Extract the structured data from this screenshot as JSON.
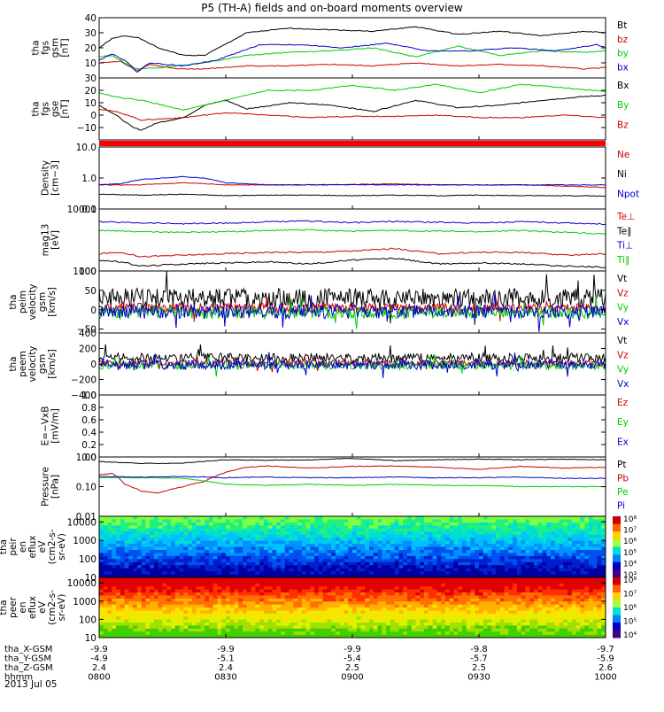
{
  "title": "P5 (TH-A) fields and on-board moments overview",
  "date": "2013 Jul 05",
  "colors": {
    "black": "#000000",
    "red": "#cc0000",
    "green": "#00cc00",
    "blue": "#0000cc",
    "bar": "#ff0000"
  },
  "chart_data": [
    {
      "type": "line",
      "ylabel": [
        "tha",
        "fgs",
        "gsm",
        "[nT]"
      ],
      "ylim": [
        0,
        40
      ],
      "log": false,
      "yticks": [
        {
          "v": 40,
          "t": "40"
        },
        {
          "v": 30,
          "t": "30"
        },
        {
          "v": 20,
          "t": "20"
        },
        {
          "v": 10,
          "t": "10"
        }
      ],
      "series": [
        {
          "name": "Bt",
          "color": "black",
          "x": [
            0,
            3,
            6,
            9,
            14,
            20,
            25,
            35,
            45,
            55,
            65,
            75,
            85,
            95,
            105,
            115,
            120
          ],
          "values": [
            20,
            26,
            28,
            27,
            20,
            15,
            15,
            30,
            33,
            32,
            31,
            34,
            29,
            31,
            28,
            31,
            30
          ]
        },
        {
          "name": "bz",
          "color": "red",
          "x": [
            0,
            5,
            9,
            12,
            18,
            25,
            35,
            45,
            55,
            65,
            75,
            85,
            95,
            105,
            115,
            120
          ],
          "values": [
            10,
            11,
            5,
            9,
            6,
            6,
            8,
            8,
            9,
            8,
            10,
            8,
            9,
            8,
            6,
            7
          ]
        },
        {
          "name": "by",
          "color": "green",
          "x": [
            0,
            3,
            6,
            9,
            15,
            25,
            35,
            45,
            55,
            65,
            75,
            85,
            95,
            105,
            115,
            120
          ],
          "values": [
            14,
            15,
            10,
            6,
            7,
            10,
            15,
            17,
            18,
            20,
            14,
            21,
            15,
            18,
            17,
            18
          ]
        },
        {
          "name": "bx",
          "color": "blue",
          "x": [
            0,
            3,
            6,
            9,
            12,
            20,
            28,
            38,
            48,
            58,
            68,
            78,
            88,
            98,
            108,
            118,
            120
          ],
          "values": [
            12,
            16,
            12,
            4,
            10,
            8,
            12,
            22,
            22,
            20,
            23,
            18,
            18,
            20,
            18,
            22,
            20
          ]
        }
      ]
    },
    {
      "type": "line",
      "ylabel": [
        "tha",
        "fgs",
        "gse",
        "[nT]"
      ],
      "ylim": [
        -20,
        30
      ],
      "log": false,
      "yticks": [
        {
          "v": 30,
          "t": "30"
        },
        {
          "v": 20,
          "t": "20"
        },
        {
          "v": 10,
          "t": "10"
        },
        {
          "v": 0,
          "t": "0"
        },
        {
          "v": -10,
          "t": "−10"
        }
      ],
      "series": [
        {
          "name": "Bx",
          "color": "black",
          "x": [
            0,
            4,
            8,
            10,
            14,
            20,
            25,
            30,
            35,
            45,
            55,
            65,
            75,
            85,
            95,
            105,
            115,
            120
          ],
          "values": [
            8,
            0,
            -10,
            -12,
            -6,
            -2,
            8,
            12,
            5,
            10,
            8,
            3,
            12,
            6,
            8,
            12,
            15,
            16
          ]
        },
        {
          "name": "By",
          "color": "green",
          "x": [
            0,
            5,
            10,
            15,
            20,
            30,
            40,
            50,
            60,
            70,
            80,
            90,
            100,
            110,
            120
          ],
          "values": [
            18,
            14,
            12,
            8,
            4,
            12,
            20,
            20,
            24,
            20,
            25,
            18,
            25,
            22,
            19
          ]
        },
        {
          "name": "Bz",
          "color": "red",
          "x": [
            0,
            5,
            10,
            20,
            30,
            40,
            50,
            60,
            70,
            80,
            90,
            100,
            110,
            120
          ],
          "values": [
            5,
            2,
            -4,
            -2,
            2,
            0,
            -2,
            -1,
            -1,
            0,
            -2,
            -2,
            0,
            -2
          ]
        }
      ]
    },
    {
      "type": "bar",
      "ylabel": [],
      "note": "solid red status bar",
      "color": "bar"
    },
    {
      "type": "line",
      "ylabel": [
        "Density",
        "[cm−3]"
      ],
      "ylim": [
        0.1,
        10
      ],
      "log": true,
      "yticks": [
        {
          "v": 10,
          "t": "10.0"
        },
        {
          "v": 1,
          "t": "1.0"
        },
        {
          "v": 0.1,
          "t": "0.1"
        }
      ],
      "series": [
        {
          "name": "Ne",
          "color": "red",
          "x": [
            0,
            10,
            20,
            30,
            40,
            50,
            60,
            70,
            80,
            90,
            100,
            110,
            120
          ],
          "values": [
            0.6,
            0.6,
            0.7,
            0.6,
            0.6,
            0.6,
            0.62,
            0.65,
            0.6,
            0.6,
            0.6,
            0.55,
            0.5
          ]
        },
        {
          "name": "Ni",
          "color": "black",
          "x": [
            0,
            10,
            20,
            30,
            40,
            50,
            60,
            70,
            80,
            90,
            100,
            110,
            120
          ],
          "values": [
            0.3,
            0.28,
            0.3,
            0.27,
            0.28,
            0.28,
            0.27,
            0.28,
            0.27,
            0.28,
            0.27,
            0.27,
            0.26
          ]
        },
        {
          "name": "Npot",
          "color": "blue",
          "x": [
            0,
            5,
            10,
            15,
            20,
            25,
            30,
            40,
            50,
            60,
            70,
            80,
            90,
            100,
            110,
            120
          ],
          "values": [
            0.6,
            0.65,
            0.9,
            1.0,
            1.1,
            1.0,
            0.7,
            0.6,
            0.6,
            0.6,
            0.6,
            0.6,
            0.6,
            0.6,
            0.6,
            0.6
          ]
        }
      ]
    },
    {
      "type": "line",
      "ylabel": [
        "mag13",
        "[eV]"
      ],
      "ylim": [
        1000,
        10000
      ],
      "log": true,
      "yticks": [
        {
          "v": 10000,
          "t": "10000"
        },
        {
          "v": 1000,
          "t": "1000"
        }
      ],
      "series": [
        {
          "name": "Te⊥",
          "color": "red",
          "x": [
            0,
            5,
            10,
            20,
            30,
            40,
            50,
            60,
            70,
            80,
            90,
            100,
            110,
            120
          ],
          "values": [
            1900,
            2000,
            1700,
            1800,
            1900,
            2000,
            2000,
            2100,
            2300,
            1900,
            2000,
            2000,
            1800,
            1900
          ]
        },
        {
          "name": "Te∥",
          "color": "black",
          "x": [
            0,
            5,
            10,
            20,
            30,
            40,
            50,
            60,
            70,
            80,
            90,
            100,
            110,
            120
          ],
          "values": [
            1500,
            1400,
            1200,
            1300,
            1350,
            1400,
            1300,
            1500,
            1600,
            1300,
            1350,
            1300,
            1200,
            1150
          ]
        },
        {
          "name": "Ti⊥",
          "color": "blue",
          "x": [
            0,
            10,
            20,
            30,
            40,
            50,
            60,
            70,
            80,
            90,
            100,
            110,
            120
          ],
          "values": [
            6200,
            6000,
            5800,
            5900,
            6200,
            6400,
            6000,
            6300,
            6100,
            6000,
            6200,
            6000,
            5700
          ]
        },
        {
          "name": "Ti∥",
          "color": "green",
          "x": [
            0,
            10,
            20,
            30,
            40,
            50,
            60,
            70,
            80,
            90,
            100,
            110,
            120
          ],
          "values": [
            4500,
            4300,
            4200,
            4300,
            4500,
            4600,
            4400,
            4500,
            4400,
            4300,
            4500,
            4200,
            4000
          ]
        }
      ]
    },
    {
      "type": "line",
      "ylabel": [
        "tha",
        "peim",
        "velocity",
        "gsm",
        "[km/s]"
      ],
      "ylim": [
        -60,
        100
      ],
      "log": false,
      "yticks": [
        {
          "v": 100,
          "t": "100"
        },
        {
          "v": 50,
          "t": "50"
        },
        {
          "v": 0,
          "t": "0"
        },
        {
          "v": -50,
          "t": "−50"
        }
      ],
      "series": [
        {
          "name": "Vt",
          "color": "black",
          "base": 30,
          "amp": 25
        },
        {
          "name": "Vz",
          "color": "red",
          "base": 5,
          "amp": 12
        },
        {
          "name": "Vy",
          "color": "green",
          "base": -8,
          "amp": 15
        },
        {
          "name": "Vx",
          "color": "blue",
          "base": -5,
          "amp": 18
        }
      ]
    },
    {
      "type": "line",
      "ylabel": [
        "tha",
        "peem",
        "velocity",
        "gsm",
        "[km/s]"
      ],
      "ylim": [
        -400,
        400
      ],
      "log": false,
      "yticks": [
        {
          "v": 400,
          "t": "400"
        },
        {
          "v": 200,
          "t": "200"
        },
        {
          "v": 0,
          "t": "0"
        },
        {
          "v": -200,
          "t": "−200"
        },
        {
          "v": -400,
          "t": "−400"
        }
      ],
      "series": [
        {
          "name": "Vt",
          "color": "black",
          "base": 80,
          "amp": 60
        },
        {
          "name": "Vz",
          "color": "red",
          "base": 10,
          "amp": 40
        },
        {
          "name": "Vy",
          "color": "green",
          "base": -20,
          "amp": 50
        },
        {
          "name": "Vx",
          "color": "blue",
          "base": -10,
          "amp": 60
        }
      ]
    },
    {
      "type": "line",
      "ylabel": [
        "E=−VxB",
        "[mV/m]"
      ],
      "ylim": [
        0,
        1
      ],
      "log": false,
      "yticks": [
        {
          "v": 1,
          "t": "1.0"
        },
        {
          "v": 0.8,
          "t": "0.8"
        },
        {
          "v": 0.6,
          "t": "0.6"
        },
        {
          "v": 0.4,
          "t": "0.4"
        },
        {
          "v": 0.2,
          "t": "0.2"
        },
        {
          "v": 0,
          "t": "0.0"
        }
      ],
      "series": [
        {
          "name": "Ez",
          "color": "red"
        },
        {
          "name": "Ey",
          "color": "green"
        },
        {
          "name": "Ex",
          "color": "blue"
        }
      ]
    },
    {
      "type": "line",
      "ylabel": [
        "Pressure",
        "[nPa]"
      ],
      "ylim": [
        0.01,
        1
      ],
      "log": true,
      "yticks": [
        {
          "v": 1,
          "t": "1.00"
        },
        {
          "v": 0.1,
          "t": "0.10"
        },
        {
          "v": 0.01,
          "t": "0.01"
        }
      ],
      "series": [
        {
          "name": "Pt",
          "color": "black",
          "x": [
            0,
            5,
            10,
            20,
            30,
            40,
            50,
            60,
            70,
            80,
            90,
            100,
            110,
            120
          ],
          "values": [
            0.7,
            0.65,
            0.6,
            0.62,
            0.8,
            0.78,
            0.8,
            0.9,
            0.75,
            0.8,
            0.85,
            0.8,
            0.85,
            0.8
          ]
        },
        {
          "name": "Pb",
          "color": "red",
          "x": [
            0,
            3,
            6,
            10,
            14,
            20,
            25,
            30,
            35,
            40,
            50,
            60,
            70,
            80,
            90,
            100,
            110,
            120
          ],
          "values": [
            0.25,
            0.28,
            0.12,
            0.07,
            0.06,
            0.1,
            0.15,
            0.3,
            0.45,
            0.5,
            0.42,
            0.48,
            0.5,
            0.45,
            0.38,
            0.48,
            0.42,
            0.45
          ]
        },
        {
          "name": "Pe",
          "color": "green",
          "x": [
            0,
            10,
            20,
            30,
            40,
            50,
            60,
            70,
            80,
            90,
            100,
            110,
            120
          ],
          "values": [
            0.2,
            0.2,
            0.19,
            0.12,
            0.11,
            0.12,
            0.11,
            0.12,
            0.11,
            0.11,
            0.1,
            0.1,
            0.1
          ]
        },
        {
          "name": "Pi",
          "color": "blue",
          "x": [
            0,
            10,
            20,
            30,
            40,
            50,
            60,
            70,
            80,
            90,
            100,
            110,
            120
          ],
          "values": [
            0.22,
            0.21,
            0.22,
            0.2,
            0.21,
            0.2,
            0.2,
            0.21,
            0.2,
            0.2,
            0.21,
            0.19,
            0.19
          ]
        }
      ]
    },
    {
      "type": "heatmap",
      "ylabel": [
        "tha",
        "peir",
        "en",
        "eflux",
        "eV",
        "(cm2-s-",
        "sr-eV)"
      ],
      "ylim": [
        10,
        20000
      ],
      "log": true,
      "yticks": [
        {
          "v": 10000,
          "t": "10000"
        },
        {
          "v": 1000,
          "t": "1000"
        },
        {
          "v": 100,
          "t": "100"
        },
        {
          "v": 10,
          "t": "10"
        }
      ],
      "cbar": [
        "10⁸",
        "10⁷",
        "10⁶",
        "10⁵",
        "10⁴",
        "10³"
      ],
      "palette": "ion"
    },
    {
      "type": "heatmap",
      "ylabel": [
        "tha",
        "peer",
        "en",
        "eflux",
        "eV",
        "(cm2-s-",
        "sr-eV)"
      ],
      "ylim": [
        10,
        20000
      ],
      "log": true,
      "yticks": [
        {
          "v": 10000,
          "t": "10000"
        },
        {
          "v": 1000,
          "t": "1000"
        },
        {
          "v": 100,
          "t": "100"
        },
        {
          "v": 10,
          "t": "10"
        }
      ],
      "cbar": [
        "10⁸",
        "10⁷",
        "10⁶",
        "10⁵",
        "10⁴"
      ],
      "palette": "ele"
    }
  ],
  "xaxis": {
    "labels": [
      "tha_X-GSM",
      "tha_Y-GSM",
      "tha_Z-GSM",
      "hhmm"
    ],
    "ticks": [
      {
        "t": 0,
        "vals": [
          "-9.9",
          "-4.9",
          "2.4",
          "0800"
        ]
      },
      {
        "t": 30,
        "vals": [
          "-9.9",
          "-5.1",
          "2.4",
          "0830"
        ]
      },
      {
        "t": 60,
        "vals": [
          "-9.9",
          "-5.4",
          "2.5",
          "0900"
        ]
      },
      {
        "t": 90,
        "vals": [
          "-9.8",
          "-5.7",
          "2.5",
          "0930"
        ]
      },
      {
        "t": 120,
        "vals": [
          "-9.7",
          "-5.9",
          "2.6",
          "1000"
        ]
      }
    ]
  }
}
